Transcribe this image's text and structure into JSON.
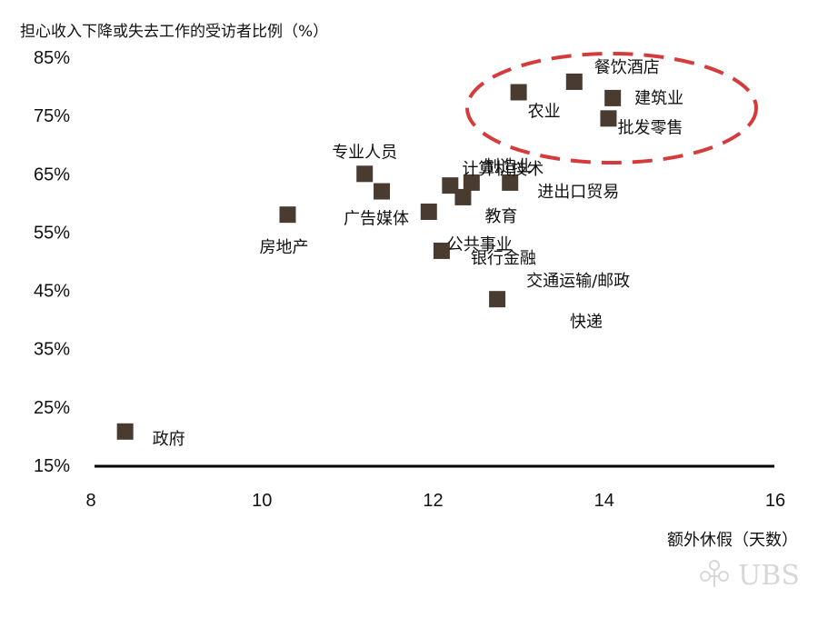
{
  "chart_data": {
    "type": "scatter",
    "title": "",
    "ylabel": "担心收入下降或失去工作的受访者比例（%）",
    "xlabel": "额外休假（天数）",
    "xlim": [
      8,
      16
    ],
    "ylim": [
      15,
      85
    ],
    "x_ticks": [
      8,
      10,
      12,
      14,
      16
    ],
    "y_ticks": [
      "15%",
      "25%",
      "35%",
      "45%",
      "55%",
      "65%",
      "75%",
      "85%"
    ],
    "grid": false,
    "marker_color": "#4a3b30",
    "highlight_color": "#d63b3b",
    "points": [
      {
        "label": "政府",
        "x": 8.4,
        "y": 20.8
      },
      {
        "label": "房地产",
        "x": 10.3,
        "y": 58.0
      },
      {
        "label": "专业人员",
        "x": 11.2,
        "y": 65.0
      },
      {
        "label": "广告媒体",
        "x": 11.4,
        "y": 62.0
      },
      {
        "label": "计算机技术",
        "x": 12.2,
        "y": 63.0
      },
      {
        "label": "公共事业",
        "x": 11.95,
        "y": 58.5
      },
      {
        "label": "教育",
        "x": 12.35,
        "y": 61.0
      },
      {
        "label": "制造业",
        "x": 12.45,
        "y": 63.5
      },
      {
        "label": "进出口贸易",
        "x": 12.9,
        "y": 63.5
      },
      {
        "label": "银行金融",
        "x": 12.1,
        "y": 51.8
      },
      {
        "label": "交通运输/邮政",
        "x": 12.75,
        "y": 43.5
      },
      {
        "label": "农业",
        "x": 13.0,
        "y": 79.0
      },
      {
        "label": "餐饮酒店",
        "x": 13.65,
        "y": 80.8
      },
      {
        "label": "建筑业",
        "x": 14.1,
        "y": 78.0
      },
      {
        "label": "批发零售",
        "x": 14.05,
        "y": 74.5
      }
    ],
    "extra_labels": [
      "快递"
    ],
    "highlight_group": [
      "农业",
      "餐饮酒店",
      "建筑业",
      "批发零售"
    ]
  },
  "watermark": "UBS"
}
